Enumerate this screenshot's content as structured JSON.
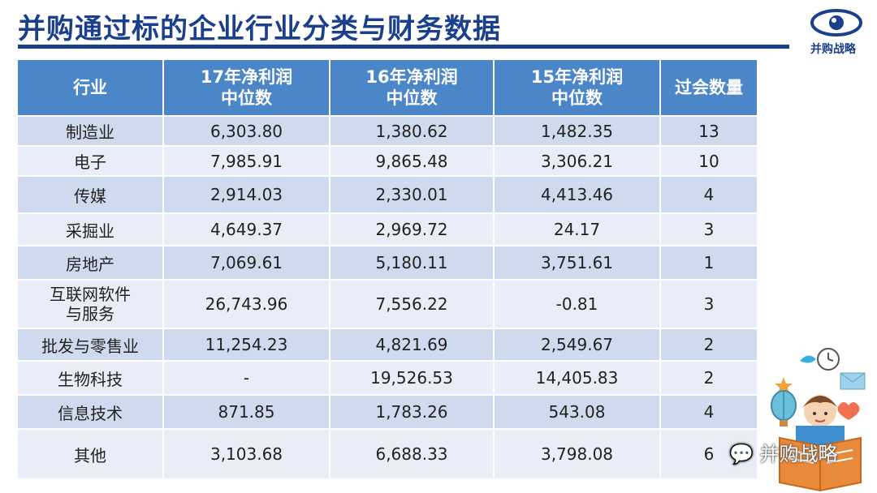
{
  "title": "并购通过标的企业行业分类与财务数据",
  "logo_text": "并购战略",
  "headers": [
    {
      "line1": "行业",
      "line2": ""
    },
    {
      "line1": "17年净利润",
      "line2": "中位数"
    },
    {
      "line1": "16年净利润",
      "line2": "中位数"
    },
    {
      "line1": "15年净利润",
      "line2": "中位数"
    },
    {
      "line1": "过会数量",
      "line2": ""
    }
  ],
  "rows": [
    {
      "industry": "制造业",
      "p17": "6,303.80",
      "p16": "1,380.62",
      "p15": "1,482.35",
      "count": "13"
    },
    {
      "industry": "电子",
      "p17": "7,985.91",
      "p16": "9,865.48",
      "p15": "3,306.21",
      "count": "10"
    },
    {
      "industry": "传媒",
      "p17": "2,914.03",
      "p16": "2,330.01",
      "p15": "4,413.46",
      "count": "4"
    },
    {
      "industry": "采掘业",
      "p17": "4,649.37",
      "p16": "2,969.72",
      "p15": "24.17",
      "count": "3"
    },
    {
      "industry": "房地产",
      "p17": "7,069.61",
      "p16": "5,180.11",
      "p15": "3,751.61",
      "count": "1"
    },
    {
      "industry": "互联网软件",
      "industry2": "与服务",
      "p17": "26,743.96",
      "p16": "7,556.22",
      "p15": "-0.81",
      "count": "3"
    },
    {
      "industry": "批发与零售业",
      "p17": "11,254.23",
      "p16": "4,821.69",
      "p15": "2,549.67",
      "count": "2"
    },
    {
      "industry": "生物科技",
      "p17": "-",
      "p16": "19,526.53",
      "p15": "14,405.83",
      "count": "2"
    },
    {
      "industry": "信息技术",
      "p17": "871.85",
      "p16": "1,783.26",
      "p15": "543.08",
      "count": "4"
    },
    {
      "industry": "其他",
      "p17": "3,103.68",
      "p16": "6,688.33",
      "p15": "3,798.08",
      "count": "6"
    }
  ],
  "watermark": "并购战略",
  "colors": {
    "title": "#1a3f8c",
    "header_bg": "#4a86c8",
    "row_odd": "#cfdaee",
    "row_even": "#e8edf7",
    "negative": "#e03030"
  }
}
